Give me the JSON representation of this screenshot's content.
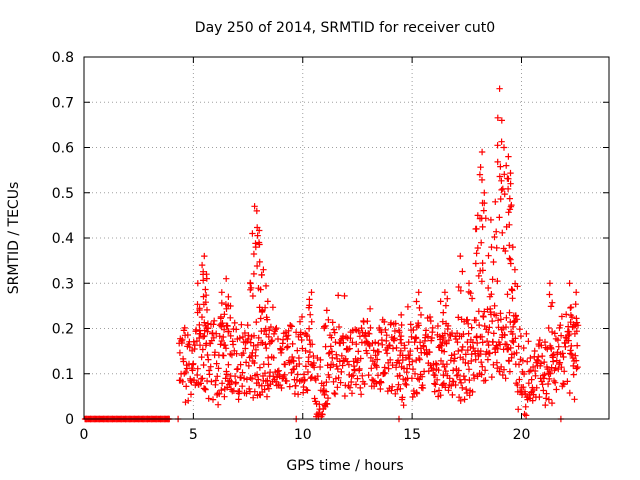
{
  "chart_data": {
    "type": "scatter",
    "title": "Day 250 of 2014, SRMTID for receiver cut0",
    "xlabel": "GPS time / hours",
    "ylabel": "SRMTID / TECUs",
    "xlim": [
      0,
      24
    ],
    "ylim": [
      0,
      0.8
    ],
    "xticks": [
      0,
      5,
      10,
      15,
      20
    ],
    "yticks": [
      0,
      0.1,
      0.2,
      0.3,
      0.4,
      0.5,
      0.6,
      0.7,
      0.8
    ],
    "ytick_labels": [
      "0",
      "0.1",
      "0.2",
      "0.3",
      "0.4",
      "0.5",
      "0.6",
      "0.7",
      "0.8"
    ],
    "grid": true,
    "marker": "+",
    "series": [
      {
        "name": "SRMTID cut0",
        "color": "#ff0000",
        "note": "Approximately 0 from 0 to ~4.3 h (intermittent zeros at ~9.7, ~14.4, ~21.8 h); dense scatter ~0.03-0.25 TECU from 4.3 to 22.6 h with peaks near 5.5 h (0.36), 6.5 h (0.31), 7.9 h (0.47), 10.4 h (0.28), 17.2 h (0.36), 18.2 h (0.59), 19 h (0.73), 19.4 h (0.58), 21.3 h (0.30), 22.2 h (0.30).",
        "zero_points_x": [
          0.1,
          0.3,
          0.5,
          0.7,
          0.9,
          1.1,
          1.3,
          1.5,
          1.7,
          1.9,
          2.1,
          2.3,
          2.5,
          2.7,
          2.9,
          3.1,
          3.3,
          3.5,
          3.7,
          3.85,
          4.3,
          9.7,
          14.4,
          21.8
        ],
        "peak_points": [
          [
            5.2,
            0.3
          ],
          [
            5.4,
            0.34
          ],
          [
            5.5,
            0.36
          ],
          [
            5.6,
            0.32
          ],
          [
            6.3,
            0.28
          ],
          [
            6.5,
            0.31
          ],
          [
            6.6,
            0.27
          ],
          [
            7.7,
            0.41
          ],
          [
            7.8,
            0.47
          ],
          [
            7.9,
            0.46
          ],
          [
            8.0,
            0.39
          ],
          [
            8.2,
            0.33
          ],
          [
            8.4,
            0.26
          ],
          [
            10.4,
            0.28
          ],
          [
            11.1,
            0.24
          ],
          [
            14.5,
            0.23
          ],
          [
            15.3,
            0.28
          ],
          [
            16.3,
            0.26
          ],
          [
            16.5,
            0.28
          ],
          [
            17.2,
            0.36
          ],
          [
            17.6,
            0.3
          ],
          [
            18.0,
            0.45
          ],
          [
            18.1,
            0.54
          ],
          [
            18.2,
            0.59
          ],
          [
            18.3,
            0.5
          ],
          [
            18.6,
            0.44
          ],
          [
            18.8,
            0.48
          ],
          [
            19.0,
            0.73
          ],
          [
            19.1,
            0.66
          ],
          [
            19.2,
            0.6
          ],
          [
            19.3,
            0.56
          ],
          [
            19.4,
            0.58
          ],
          [
            19.5,
            0.52
          ],
          [
            19.6,
            0.38
          ],
          [
            19.7,
            0.33
          ],
          [
            21.3,
            0.3
          ],
          [
            22.2,
            0.3
          ],
          [
            22.5,
            0.28
          ]
        ]
      }
    ]
  }
}
